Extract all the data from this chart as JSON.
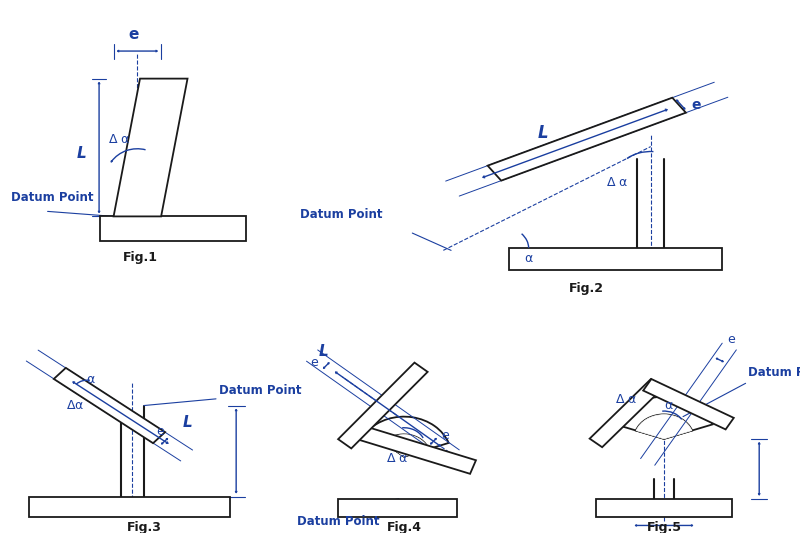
{
  "blue": "#1b3fa0",
  "black": "#1a1a1a",
  "bg": "#ffffff",
  "fig_labels": [
    "Fig.1",
    "Fig.2",
    "Fig.3",
    "Fig.4",
    "Fig.5"
  ]
}
